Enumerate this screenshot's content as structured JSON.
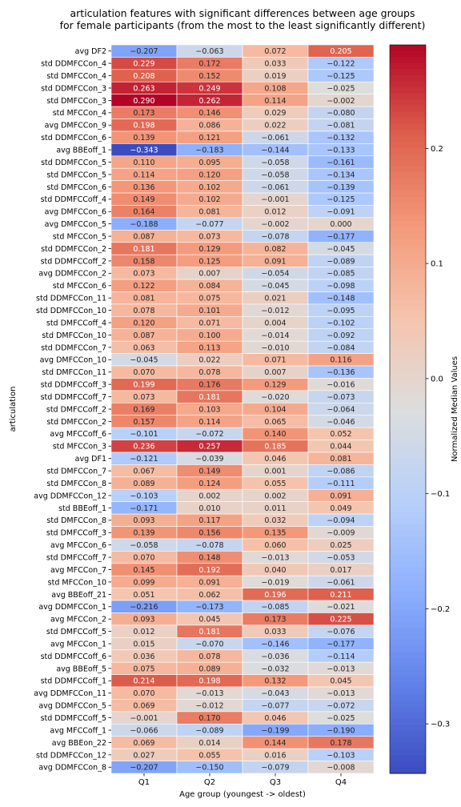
{
  "chart_data": {
    "type": "heatmap",
    "title": "articulation features with significant differences between age groups\nfor female participants (from the most to the least significantly different)",
    "xlabel": "Age group (youngest -> oldest)",
    "ylabel": "articulation",
    "colorbar_label": "Normalized Median Values",
    "colormap": "coolwarm",
    "vmin": -0.343,
    "vmax": 0.29,
    "colorbar_ticks": [
      -0.3,
      -0.2,
      -0.1,
      0.0,
      0.1,
      0.2
    ],
    "colorbar_tick_labels": [
      "−0.3",
      "−0.2",
      "−0.1",
      "0.0",
      "0.1",
      "0.2"
    ],
    "columns": [
      "Q1",
      "Q2",
      "Q3",
      "Q4"
    ],
    "rows": [
      "avg DF2",
      "std DDMFCCon_4",
      "std DMFCCon_4",
      "std DDMFCCon_3",
      "std DMFCCon_3",
      "std MFCCon_4",
      "avg DMFCCon_9",
      "std DDMFCCon_6",
      "avg BBEoff_1",
      "std DDMFCCon_5",
      "std DMFCCon_5",
      "std DMFCCon_6",
      "std DDMFCCoff_4",
      "avg DMFCCon_6",
      "avg DMFCCon_5",
      "std MFCCon_5",
      "std DDMFCCon_2",
      "std DDMFCCoff_2",
      "avg DDMFCCon_2",
      "std MFCCon_6",
      "std DDMFCCon_11",
      "std DDMFCCon_10",
      "std DMFCCoff_4",
      "std DMFCCon_10",
      "std DDMFCCon_7",
      "avg DMFCCon_10",
      "std DMFCCon_11",
      "std DDMFCCoff_3",
      "std DDMFCCoff_7",
      "std DMFCCoff_2",
      "std DMFCCon_2",
      "avg MFCCoff_6",
      "std MFCCon_3",
      "avg DF1",
      "std DMFCCon_7",
      "std DMFCCon_8",
      "avg DDMFCCon_12",
      "std BBEoff_1",
      "std DMFCCon_8",
      "std DMFCCoff_3",
      "avg MFCCon_6",
      "std DMFCCoff_7",
      "avg MFCCon_7",
      "std MFCCon_10",
      "avg BBEoff_21",
      "avg DDMFCCon_1",
      "avg MFCCon_2",
      "std DMFCCoff_5",
      "avg MFCCon_1",
      "std DDMFCCoff_6",
      "avg BBEoff_5",
      "std DDMFCCoff_1",
      "avg DDMFCCon_11",
      "avg DDMFCCon_5",
      "std DDMFCCoff_5",
      "avg MFCCoff_1",
      "avg BBEon_22",
      "std DDMFCCon_12",
      "avg DDMFCCon_8"
    ],
    "values": [
      [
        -0.207,
        -0.063,
        0.072,
        0.205
      ],
      [
        0.229,
        0.172,
        0.033,
        -0.122
      ],
      [
        0.208,
        0.152,
        0.019,
        -0.125
      ],
      [
        0.263,
        0.249,
        0.108,
        -0.025
      ],
      [
        0.29,
        0.262,
        0.114,
        -0.002
      ],
      [
        0.173,
        0.146,
        0.029,
        -0.08
      ],
      [
        0.198,
        0.086,
        0.022,
        -0.081
      ],
      [
        0.139,
        0.121,
        -0.061,
        -0.132
      ],
      [
        -0.343,
        -0.183,
        -0.144,
        -0.133
      ],
      [
        0.11,
        0.095,
        -0.058,
        -0.161
      ],
      [
        0.114,
        0.12,
        -0.058,
        -0.134
      ],
      [
        0.136,
        0.102,
        -0.061,
        -0.139
      ],
      [
        0.149,
        0.102,
        -0.001,
        -0.125
      ],
      [
        0.164,
        0.081,
        0.012,
        -0.091
      ],
      [
        -0.188,
        -0.077,
        -0.002,
        0.0
      ],
      [
        0.087,
        0.073,
        -0.078,
        -0.177
      ],
      [
        0.181,
        0.129,
        0.082,
        -0.045
      ],
      [
        0.158,
        0.125,
        0.091,
        -0.089
      ],
      [
        0.073,
        0.007,
        -0.054,
        -0.085
      ],
      [
        0.122,
        0.084,
        -0.045,
        -0.098
      ],
      [
        0.081,
        0.075,
        0.021,
        -0.148
      ],
      [
        0.078,
        0.101,
        -0.012,
        -0.095
      ],
      [
        0.12,
        0.071,
        0.004,
        -0.102
      ],
      [
        0.087,
        0.1,
        -0.014,
        -0.092
      ],
      [
        0.063,
        0.113,
        -0.01,
        -0.084
      ],
      [
        -0.045,
        0.022,
        0.071,
        0.116
      ],
      [
        0.07,
        0.078,
        0.007,
        -0.136
      ],
      [
        0.199,
        0.176,
        0.129,
        -0.016
      ],
      [
        0.073,
        0.181,
        -0.02,
        -0.073
      ],
      [
        0.169,
        0.103,
        0.104,
        -0.064
      ],
      [
        0.157,
        0.114,
        0.065,
        -0.046
      ],
      [
        -0.101,
        -0.072,
        0.14,
        0.052
      ],
      [
        0.236,
        0.257,
        0.185,
        0.044
      ],
      [
        -0.121,
        -0.039,
        0.046,
        0.081
      ],
      [
        0.067,
        0.149,
        0.001,
        -0.086
      ],
      [
        0.089,
        0.124,
        0.055,
        -0.111
      ],
      [
        -0.103,
        0.002,
        0.002,
        0.091
      ],
      [
        -0.171,
        0.01,
        0.011,
        0.049
      ],
      [
        0.093,
        0.117,
        0.032,
        -0.094
      ],
      [
        0.139,
        0.156,
        0.135,
        -0.009
      ],
      [
        -0.058,
        -0.078,
        0.06,
        0.025
      ],
      [
        0.07,
        0.148,
        -0.013,
        -0.053
      ],
      [
        0.145,
        0.192,
        0.04,
        0.017
      ],
      [
        0.099,
        0.091,
        -0.019,
        -0.061
      ],
      [
        0.051,
        0.062,
        0.196,
        0.211
      ],
      [
        -0.216,
        -0.173,
        -0.085,
        -0.021
      ],
      [
        0.093,
        0.045,
        0.173,
        0.225
      ],
      [
        0.012,
        0.181,
        0.033,
        -0.076
      ],
      [
        0.015,
        -0.07,
        -0.146,
        -0.177
      ],
      [
        0.036,
        0.078,
        -0.036,
        -0.114
      ],
      [
        0.075,
        0.089,
        -0.032,
        -0.013
      ],
      [
        0.214,
        0.198,
        0.132,
        0.045
      ],
      [
        0.07,
        -0.013,
        -0.043,
        -0.013
      ],
      [
        0.069,
        -0.012,
        -0.077,
        -0.072
      ],
      [
        -0.001,
        0.17,
        0.046,
        -0.025
      ],
      [
        -0.066,
        -0.089,
        -0.199,
        -0.19
      ],
      [
        0.069,
        0.014,
        0.144,
        0.178
      ],
      [
        0.027,
        0.055,
        0.016,
        -0.103
      ],
      [
        -0.207,
        -0.15,
        -0.079,
        -0.008
      ]
    ]
  }
}
